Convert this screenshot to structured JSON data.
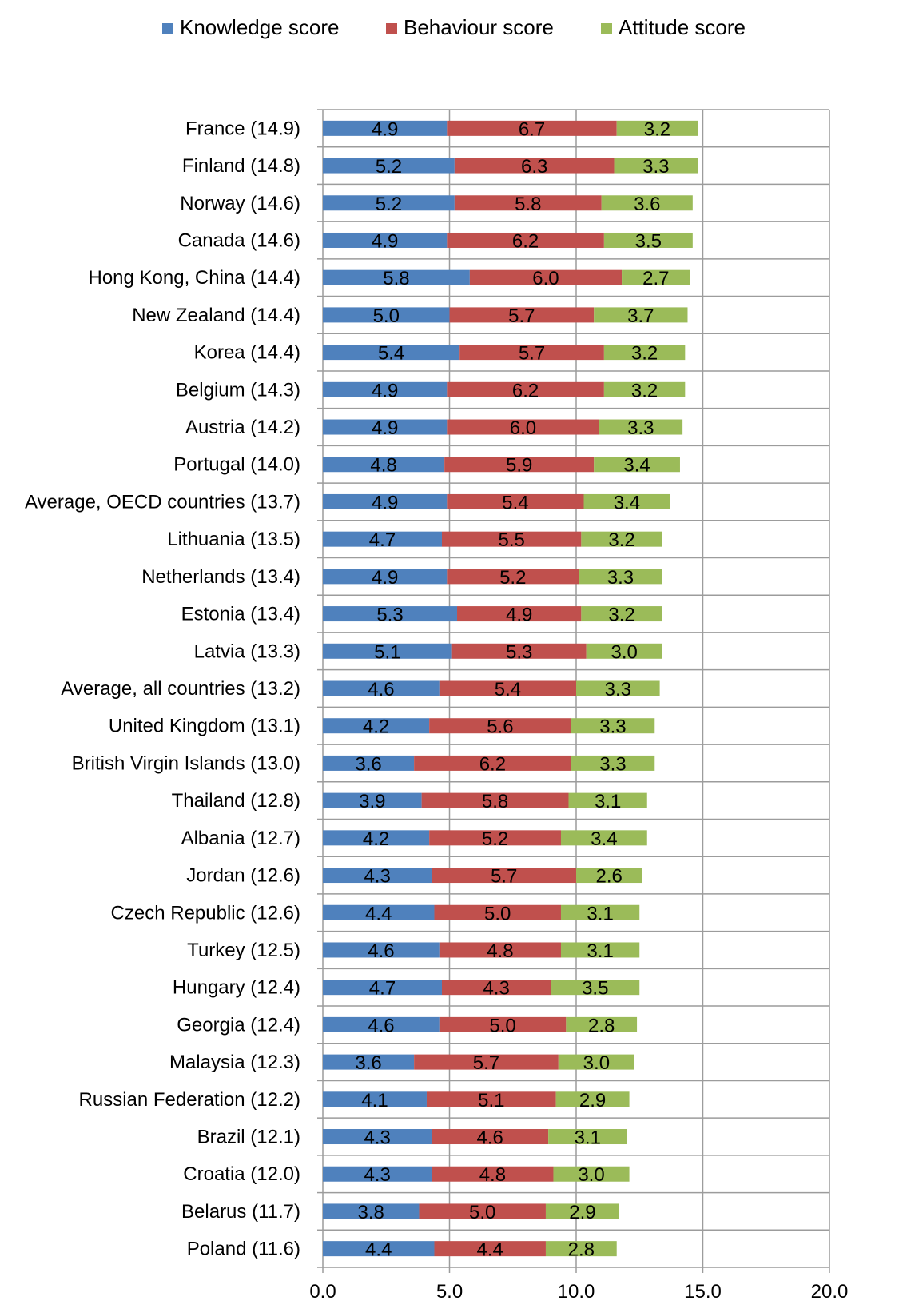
{
  "chart_data": {
    "type": "bar",
    "orientation": "horizontal",
    "stacked": true,
    "title": "",
    "xlabel": "",
    "ylabel": "",
    "xlim": [
      0,
      20
    ],
    "xticks": [
      "0.0",
      "5.0",
      "10.0",
      "15.0",
      "20.0"
    ],
    "grid": true,
    "legend_position": "top",
    "categories": [
      "France (14.9)",
      "Finland (14.8)",
      "Norway (14.6)",
      "Canada (14.6)",
      "Hong Kong, China (14.4)",
      "New Zealand (14.4)",
      "Korea (14.4)",
      "Belgium (14.3)",
      "Austria (14.2)",
      "Portugal (14.0)",
      "Average, OECD countries (13.7)",
      "Lithuania (13.5)",
      "Netherlands (13.4)",
      "Estonia (13.4)",
      "Latvia (13.3)",
      "Average, all countries (13.2)",
      "United Kingdom (13.1)",
      "British Virgin Islands (13.0)",
      "Thailand (12.8)",
      "Albania (12.7)",
      "Jordan (12.6)",
      "Czech Republic (12.6)",
      "Turkey (12.5)",
      "Hungary (12.4)",
      "Georgia (12.4)",
      "Malaysia (12.3)",
      "Russian Federation (12.2)",
      "Brazil (12.1)",
      "Croatia (12.0)",
      "Belarus (11.7)",
      "Poland (11.6)"
    ],
    "series": [
      {
        "name": "Knowledge score",
        "color": "#4F81BD",
        "values": [
          4.9,
          5.2,
          5.2,
          4.9,
          5.8,
          5.0,
          5.4,
          4.9,
          4.9,
          4.8,
          4.9,
          4.7,
          4.9,
          5.3,
          5.1,
          4.6,
          4.2,
          3.6,
          3.9,
          4.2,
          4.3,
          4.4,
          4.6,
          4.7,
          4.6,
          3.6,
          4.1,
          4.3,
          4.3,
          3.8,
          4.4
        ]
      },
      {
        "name": "Behaviour score",
        "color": "#C0504D",
        "values": [
          6.7,
          6.3,
          5.8,
          6.2,
          6.0,
          5.7,
          5.7,
          6.2,
          6.0,
          5.9,
          5.4,
          5.5,
          5.2,
          4.9,
          5.3,
          5.4,
          5.6,
          6.2,
          5.8,
          5.2,
          5.7,
          5.0,
          4.8,
          4.3,
          5.0,
          5.7,
          5.1,
          4.6,
          4.8,
          5.0,
          4.4
        ]
      },
      {
        "name": "Attitude score",
        "color": "#9BBB59",
        "values": [
          3.2,
          3.3,
          3.6,
          3.5,
          2.7,
          3.7,
          3.2,
          3.2,
          3.3,
          3.4,
          3.4,
          3.2,
          3.3,
          3.2,
          3.0,
          3.3,
          3.3,
          3.3,
          3.1,
          3.4,
          2.6,
          3.1,
          3.1,
          3.5,
          2.8,
          3.0,
          2.9,
          3.1,
          3.0,
          2.9,
          2.8
        ]
      }
    ]
  }
}
